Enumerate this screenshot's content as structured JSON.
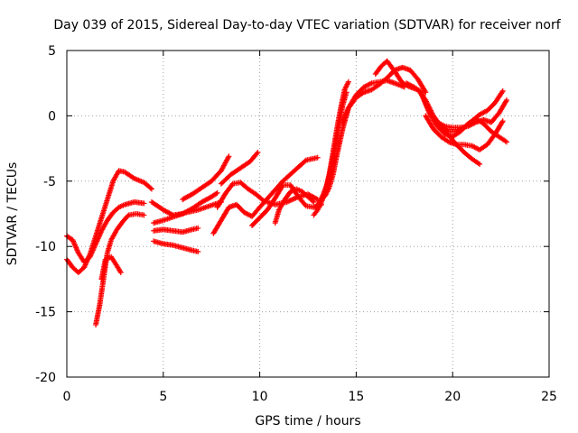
{
  "chart_data": {
    "type": "scatter",
    "title": "Day 039 of 2015, Sidereal Day-to-day VTEC variation (SDTVAR) for receiver norf",
    "xlabel": "GPS time / hours",
    "ylabel": "SDTVAR / TECUs",
    "xlim": [
      0,
      25
    ],
    "ylim": [
      -20,
      5
    ],
    "xticks": [
      "0",
      "5",
      "10",
      "15",
      "20",
      "25"
    ],
    "yticks": [
      "5",
      "0",
      "-5",
      "-10",
      "-15",
      "-20"
    ],
    "grid": true,
    "marker": "plus",
    "color": "#ff0000",
    "series": [
      {
        "x": [
          0.0,
          0.3,
          0.6,
          0.9,
          1.2,
          1.5,
          1.8,
          2.1,
          2.4,
          2.7,
          3.0,
          3.5,
          4.0,
          4.4
        ],
        "y": [
          -11.0,
          -11.6,
          -12.0,
          -11.6,
          -10.6,
          -9.2,
          -7.8,
          -6.4,
          -5.0,
          -4.2,
          -4.3,
          -4.8,
          -5.1,
          -5.6
        ]
      },
      {
        "x": [
          0.0,
          0.3,
          0.6,
          0.9,
          1.2,
          1.5,
          1.8,
          2.1,
          2.4,
          2.7,
          3.0,
          3.5,
          4.0
        ],
        "y": [
          -9.2,
          -9.5,
          -10.5,
          -11.2,
          -10.8,
          -9.8,
          -8.8,
          -8.0,
          -7.4,
          -7.0,
          -6.8,
          -6.6,
          -6.7
        ]
      },
      {
        "x": [
          1.5,
          1.7,
          1.9,
          2.1,
          2.3,
          2.6,
          2.9,
          3.2,
          3.6,
          4.0
        ],
        "y": [
          -16.0,
          -14.5,
          -12.5,
          -10.5,
          -9.5,
          -8.7,
          -8.1,
          -7.6,
          -7.5,
          -7.6
        ]
      },
      {
        "x": [
          1.8,
          2.0,
          2.3,
          2.6,
          2.8
        ],
        "y": [
          -12.5,
          -11.0,
          -10.8,
          -11.5,
          -12.0
        ]
      },
      {
        "x": [
          4.4,
          5.0,
          5.5,
          6.0,
          6.5,
          7.0,
          7.5,
          7.8
        ],
        "y": [
          -6.6,
          -7.2,
          -7.6,
          -7.5,
          -7.1,
          -6.6,
          -6.2,
          -5.9
        ]
      },
      {
        "x": [
          4.5,
          5.0,
          5.6,
          6.2,
          6.8,
          7.4,
          8.0
        ],
        "y": [
          -8.2,
          -8.0,
          -7.7,
          -7.4,
          -7.2,
          -6.9,
          -6.6
        ]
      },
      {
        "x": [
          4.5,
          5.0,
          5.5,
          6.0,
          6.5,
          6.8
        ],
        "y": [
          -8.8,
          -8.7,
          -8.8,
          -8.9,
          -8.7,
          -8.6
        ]
      },
      {
        "x": [
          4.5,
          5.0,
          5.5,
          6.0,
          6.5,
          6.8
        ],
        "y": [
          -9.6,
          -9.8,
          -9.9,
          -10.1,
          -10.3,
          -10.4
        ]
      },
      {
        "x": [
          6.0,
          6.5,
          7.0,
          7.5,
          8.0,
          8.4
        ],
        "y": [
          -6.4,
          -6.0,
          -5.5,
          -5.0,
          -4.2,
          -3.1
        ]
      },
      {
        "x": [
          7.6,
          8.0,
          8.4,
          8.8,
          9.2,
          9.6,
          10.0,
          10.6,
          11.2,
          11.8,
          12.4,
          13.0
        ],
        "y": [
          -9.0,
          -8.0,
          -7.0,
          -6.8,
          -7.4,
          -7.7,
          -7.0,
          -6.0,
          -5.0,
          -4.2,
          -3.4,
          -3.2
        ]
      },
      {
        "x": [
          7.8,
          8.2,
          8.6,
          9.0,
          9.4,
          9.8,
          10.2,
          10.8,
          11.4,
          12.0,
          12.5,
          13.0
        ],
        "y": [
          -7.0,
          -6.0,
          -5.2,
          -5.1,
          -5.6,
          -6.0,
          -6.5,
          -6.8,
          -6.6,
          -6.2,
          -6.0,
          -6.4
        ]
      },
      {
        "x": [
          8.0,
          8.5,
          9.0,
          9.5,
          9.9
        ],
        "y": [
          -5.2,
          -4.5,
          -4.0,
          -3.5,
          -2.8
        ]
      },
      {
        "x": [
          9.6,
          10.0,
          10.4,
          10.8,
          11.2,
          11.6,
          12.0,
          12.4,
          12.8,
          13.2
        ],
        "y": [
          -8.4,
          -7.8,
          -7.2,
          -6.3,
          -5.3,
          -5.3,
          -6.2,
          -6.9,
          -7.0,
          -6.8
        ]
      },
      {
        "x": [
          10.8,
          11.0,
          11.3,
          11.6,
          11.9,
          12.2,
          12.5,
          12.8
        ],
        "y": [
          -8.2,
          -7.2,
          -6.4,
          -5.8,
          -5.6,
          -5.8,
          -6.2,
          -6.6
        ]
      },
      {
        "x": [
          12.8,
          13.0,
          13.2,
          13.4,
          13.6,
          13.8,
          14.0,
          14.2,
          14.4,
          14.6
        ],
        "y": [
          -7.6,
          -7.2,
          -6.6,
          -5.8,
          -4.5,
          -2.8,
          -1.0,
          0.6,
          2.0,
          2.6
        ]
      },
      {
        "x": [
          12.9,
          13.1,
          13.3,
          13.5,
          13.7,
          13.9,
          14.1,
          14.3,
          14.5
        ],
        "y": [
          -7.0,
          -6.6,
          -6.0,
          -5.2,
          -4.0,
          -2.5,
          -0.8,
          0.8,
          1.8
        ]
      },
      {
        "x": [
          13.2,
          13.4,
          13.6,
          13.8,
          14.0,
          14.3,
          14.6,
          15.0,
          15.4,
          15.8,
          16.2,
          16.6,
          17.0,
          17.5
        ],
        "y": [
          -6.4,
          -6.1,
          -5.5,
          -4.5,
          -3.0,
          -1.0,
          0.6,
          1.6,
          2.2,
          2.5,
          2.6,
          2.7,
          2.5,
          2.2
        ]
      },
      {
        "x": [
          14.3,
          14.6,
          15.0,
          15.4,
          15.8,
          16.2,
          16.6,
          17.0,
          17.4,
          17.8,
          18.2,
          18.6
        ],
        "y": [
          -0.5,
          0.6,
          1.4,
          1.8,
          2.0,
          2.4,
          2.9,
          3.5,
          3.7,
          3.5,
          2.8,
          1.8
        ]
      },
      {
        "x": [
          16.0,
          16.3,
          16.6,
          17.0,
          17.4,
          17.8,
          18.2,
          18.6,
          19.0,
          19.4,
          19.8,
          20.2,
          20.6,
          21.0,
          21.4,
          21.8,
          22.2,
          22.6
        ],
        "y": [
          3.2,
          3.8,
          4.2,
          3.4,
          2.5,
          2.2,
          2.0,
          1.2,
          0.0,
          -0.8,
          -1.2,
          -1.2,
          -0.9,
          -0.4,
          0.1,
          0.4,
          1.0,
          1.9
        ]
      },
      {
        "x": [
          17.6,
          18.0,
          18.4,
          18.8,
          19.2,
          19.6,
          20.0,
          20.4,
          20.8,
          21.2,
          21.6,
          22.0,
          22.4,
          22.8
        ],
        "y": [
          2.5,
          2.2,
          1.8,
          0.2,
          -0.5,
          -0.8,
          -0.9,
          -0.9,
          -0.8,
          -0.5,
          -0.3,
          -0.5,
          0.2,
          1.2
        ]
      },
      {
        "x": [
          18.4,
          18.8,
          19.2,
          19.6,
          20.0,
          20.4,
          20.8,
          21.2,
          21.6,
          22.0,
          22.4,
          22.8
        ],
        "y": [
          1.6,
          0.2,
          -0.8,
          -1.4,
          -1.6,
          -1.2,
          -0.6,
          -0.2,
          -0.6,
          -1.2,
          -1.6,
          -2.0
        ]
      },
      {
        "x": [
          18.6,
          19.0,
          19.4,
          19.8,
          20.2,
          20.6,
          21.0,
          21.4,
          21.8,
          22.2,
          22.6
        ],
        "y": [
          0.0,
          -1.0,
          -1.6,
          -2.0,
          -2.2,
          -2.2,
          -2.3,
          -2.6,
          -2.2,
          -1.4,
          -0.4
        ]
      },
      {
        "x": [
          19.4,
          19.8,
          20.2,
          20.6,
          21.0,
          21.4
        ],
        "y": [
          -0.8,
          -1.5,
          -2.2,
          -2.8,
          -3.3,
          -3.7
        ]
      }
    ]
  }
}
